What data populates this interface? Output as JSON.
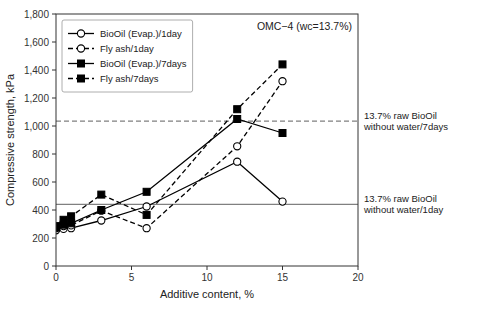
{
  "chart_data": {
    "type": "line",
    "x": [
      0,
      0.5,
      1,
      3,
      6,
      12,
      15
    ],
    "series": [
      {
        "name": "BioOil (Evap.)/1day",
        "color": "black",
        "marker": "circle-open",
        "line_style": "solid",
        "values": [
          255,
          265,
          270,
          325,
          425,
          745,
          460
        ]
      },
      {
        "name": "Fly ash/1day",
        "color": "black",
        "marker": "circle-open",
        "line_style": "dashed",
        "values": [
          270,
          285,
          290,
          395,
          270,
          855,
          1320
        ]
      },
      {
        "name": "BioOil (Evap.)/7days",
        "color": "black",
        "marker": "square",
        "line_style": "solid",
        "values": [
          275,
          295,
          305,
          400,
          530,
          1050,
          950
        ]
      },
      {
        "name": "Fly ash/7days",
        "color": "black",
        "marker": "square",
        "line_style": "dashed",
        "values": [
          285,
          330,
          355,
          510,
          365,
          1120,
          1440
        ]
      }
    ],
    "reference_lines": [
      {
        "value": 1035,
        "label": "13.7% raw BioOil\nwithout water/7days",
        "color": "gray",
        "line_style": "dashed"
      },
      {
        "value": 440,
        "label": "13.7% raw BioOil\nwithout water/1day",
        "color": "gray",
        "line_style": "solid"
      }
    ],
    "annotations": [
      "OMC−4 (wc=13.7%)"
    ],
    "xlabel": "Additive content, %",
    "ylabel": "Compressive strength, kPa",
    "xlim": [
      0,
      20
    ],
    "ylim": [
      0,
      1800
    ],
    "xticks": [
      0,
      5,
      10,
      15,
      20
    ],
    "yticks": [
      0,
      200,
      400,
      600,
      800,
      {
        "value": 1000,
        "label": "1,000"
      },
      {
        "value": 1200,
        "label": "1,200"
      },
      {
        "value": 1400,
        "label": "1,400"
      },
      {
        "value": 1600,
        "label": "1,600"
      },
      {
        "value": 1800,
        "label": "1,800"
      }
    ],
    "grid": false,
    "legend": "upper left"
  }
}
